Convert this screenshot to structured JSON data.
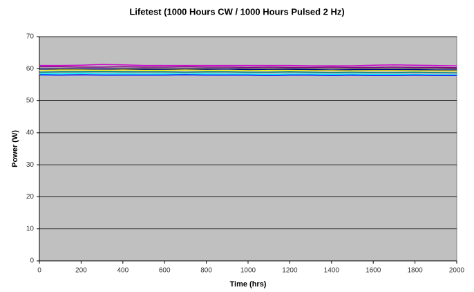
{
  "chart_data": {
    "type": "line",
    "title": "Lifetest (1000 Hours CW / 1000 Hours Pulsed 2 Hz)",
    "x_label": "Time (hrs)",
    "y_label": "Power (W)",
    "x": [
      0,
      100,
      200,
      300,
      400,
      500,
      600,
      700,
      800,
      900,
      1000,
      1100,
      1200,
      1300,
      1400,
      1500,
      1600,
      1700,
      1800,
      1900,
      2000
    ],
    "series": [
      {
        "color": "#cc00cc",
        "values": [
          61,
          61,
          61.1,
          61.3,
          61.2,
          61,
          61,
          61,
          61,
          61,
          61,
          61,
          61,
          60.9,
          60.9,
          60.9,
          61.1,
          61.2,
          61.1,
          61,
          60.9
        ]
      },
      {
        "color": "#800080",
        "values": [
          60.6,
          60.6,
          60.5,
          60.5,
          60.6,
          60.5,
          60.5,
          60.6,
          60.5,
          60.5,
          60.4,
          60.5,
          60.4,
          60.4,
          60.5,
          60.4,
          60.4,
          60.5,
          60.4,
          60.4,
          60.3
        ]
      },
      {
        "color": "#000080",
        "values": [
          59.9,
          59.8,
          59.9,
          59.9,
          59.8,
          59.8,
          59.7,
          59.8,
          59.8,
          59.9,
          59.7,
          59.7,
          59.8,
          59.7,
          59.6,
          59.7,
          59.7,
          59.7,
          59.7,
          59.6,
          59.6
        ]
      },
      {
        "color": "#ffff00",
        "values": [
          59.5,
          59.6,
          59.6,
          59.5,
          59.6,
          59.5,
          59.5,
          59.6,
          59.5,
          59.5,
          59.4,
          59.5,
          59.5,
          59.4,
          59.4,
          59.3,
          59.4,
          59.4,
          59.3,
          59.3,
          59.3
        ]
      },
      {
        "color": "#008080",
        "values": [
          58.9,
          59,
          59,
          59.1,
          59,
          59,
          59,
          58.9,
          59,
          59,
          58.9,
          58.9,
          59,
          58.9,
          58.8,
          58.9,
          58.8,
          58.8,
          58.9,
          58.8,
          58.7
        ]
      },
      {
        "color": "#00ffff",
        "values": [
          58.4,
          58.4,
          58.5,
          58.4,
          58.4,
          58.3,
          58.4,
          58.3,
          58.4,
          58.3,
          58.3,
          58.2,
          58.3,
          58.3,
          58.2,
          58.3,
          58.2,
          58.2,
          58.2,
          58.1,
          58.1
        ]
      },
      {
        "color": "#0000ff",
        "values": [
          58.1,
          58,
          58.1,
          58,
          58,
          58,
          58,
          58.1,
          58,
          58,
          58,
          57.9,
          58,
          58,
          57.9,
          58,
          57.9,
          57.9,
          58,
          57.9,
          57.9
        ]
      }
    ],
    "xlim": [
      0,
      2000
    ],
    "xticks": [
      0,
      200,
      400,
      600,
      800,
      1000,
      1200,
      1400,
      1600,
      1800,
      2000
    ],
    "ylim": [
      0,
      70
    ],
    "yticks": [
      0,
      10,
      20,
      30,
      40,
      50,
      60,
      70
    ],
    "grid": true,
    "background": "#c0c0c0"
  }
}
